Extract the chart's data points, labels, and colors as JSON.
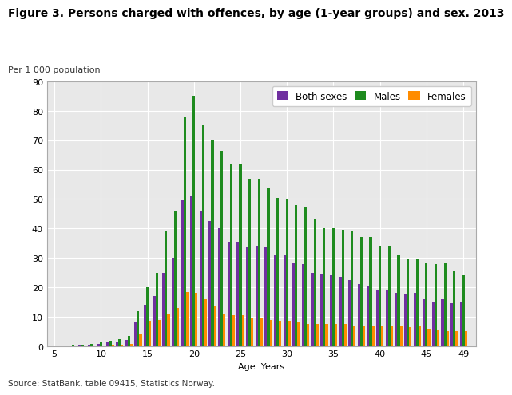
{
  "title": "Figure 3. Persons charged with offences, by age (1-year groups) and sex. 2013",
  "ylabel": "Per 1 000 population",
  "xlabel": "Age. Years",
  "source": "Source: StatBank, table 09415, Statistics Norway.",
  "ages": [
    5,
    6,
    7,
    8,
    9,
    10,
    11,
    12,
    13,
    14,
    15,
    16,
    17,
    18,
    19,
    20,
    21,
    22,
    23,
    24,
    25,
    26,
    27,
    28,
    29,
    30,
    31,
    32,
    33,
    34,
    35,
    36,
    37,
    38,
    39,
    40,
    41,
    42,
    43,
    44,
    45,
    46,
    47,
    48,
    49
  ],
  "both_sexes": [
    0.2,
    0.2,
    0.3,
    0.4,
    0.5,
    0.8,
    1.2,
    1.5,
    2.0,
    8.0,
    14.0,
    17.0,
    25.0,
    30.0,
    49.5,
    51.0,
    46.0,
    42.5,
    40.0,
    35.5,
    35.5,
    33.5,
    34.0,
    33.5,
    31.0,
    31.0,
    28.5,
    28.0,
    25.0,
    24.5,
    24.0,
    23.5,
    22.5,
    21.0,
    20.5,
    19.0,
    19.0,
    18.0,
    17.5,
    18.0,
    16.0,
    15.0,
    16.0,
    14.5,
    15.0
  ],
  "males": [
    0.3,
    0.3,
    0.4,
    0.5,
    0.7,
    1.2,
    1.8,
    2.5,
    3.5,
    12.0,
    20.0,
    25.0,
    39.0,
    46.0,
    78.0,
    85.0,
    75.0,
    70.0,
    66.5,
    62.0,
    62.0,
    57.0,
    57.0,
    54.0,
    50.5,
    50.0,
    48.0,
    47.5,
    43.0,
    40.0,
    40.0,
    39.5,
    39.0,
    37.0,
    37.0,
    34.0,
    34.0,
    31.0,
    29.5,
    29.5,
    28.5,
    28.0,
    28.5,
    25.5,
    24.0
  ],
  "females": [
    0.1,
    0.1,
    0.1,
    0.2,
    0.2,
    0.3,
    0.5,
    0.6,
    0.8,
    4.0,
    8.5,
    9.0,
    11.0,
    13.0,
    18.5,
    18.0,
    16.0,
    13.5,
    11.0,
    10.5,
    10.5,
    9.5,
    9.5,
    9.0,
    8.5,
    8.5,
    8.0,
    7.5,
    7.5,
    7.5,
    7.5,
    7.5,
    7.0,
    7.0,
    7.0,
    7.0,
    7.0,
    7.0,
    6.5,
    7.0,
    6.0,
    5.5,
    5.0,
    5.0,
    5.0
  ],
  "color_both": "#7030a0",
  "color_males": "#1e8b1e",
  "color_females": "#ff8c00",
  "ylim": [
    0,
    90
  ],
  "yticks": [
    0,
    10,
    20,
    30,
    40,
    50,
    60,
    70,
    80,
    90
  ],
  "xticks": [
    5,
    10,
    15,
    20,
    25,
    30,
    35,
    40,
    45,
    49
  ],
  "bar_width": 0.27,
  "legend_labels": [
    "Both sexes",
    "Males",
    "Females"
  ],
  "plot_bg_color": "#e8e8e8",
  "fig_bg_color": "#ffffff",
  "grid_color": "#ffffff",
  "title_fontsize": 10,
  "label_fontsize": 8,
  "tick_fontsize": 8,
  "legend_fontsize": 8.5
}
